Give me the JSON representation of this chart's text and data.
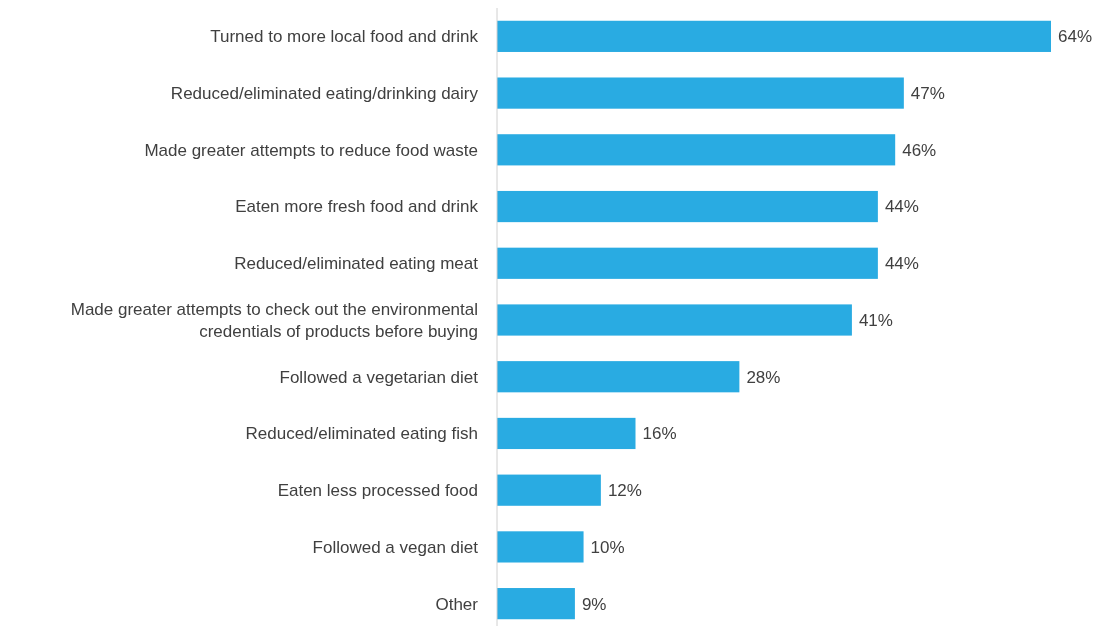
{
  "chart_data": {
    "type": "bar",
    "orientation": "horizontal",
    "categories": [
      "Turned to more local food and drink",
      "Reduced/eliminated eating/drinking dairy",
      "Made greater attempts to reduce food waste",
      "Eaten more fresh food and drink",
      "Reduced/eliminated eating meat",
      "Made greater attempts to check out the environmental credentials of products before buying",
      "Followed a vegetarian diet",
      "Reduced/eliminated eating fish",
      "Eaten less processed food",
      "Followed a vegan diet",
      "Other"
    ],
    "values": [
      64,
      47,
      46,
      44,
      44,
      41,
      28,
      16,
      12,
      10,
      9
    ],
    "value_labels": [
      "64%",
      "47%",
      "46%",
      "44%",
      "44%",
      "41%",
      "28%",
      "16%",
      "12%",
      "10%",
      "9%"
    ],
    "color": "#29abe2"
  }
}
